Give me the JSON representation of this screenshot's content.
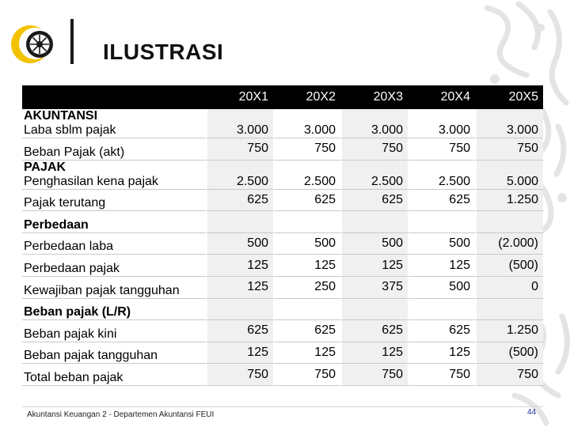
{
  "slide": {
    "title": "ILUSTRASI",
    "footer": "Akuntansi Keuangan 2 - Departemen Akuntansi FEUI",
    "page_number": "44"
  },
  "table": {
    "headers": [
      "",
      "20X1",
      "20X2",
      "20X3",
      "20X4",
      "20X5"
    ],
    "rows": [
      {
        "label_top": "AKUNTANSI",
        "label": "Laba sblm pajak",
        "values": [
          "3.000",
          "3.000",
          "3.000",
          "3.000",
          "3.000"
        ]
      },
      {
        "label": "Beban Pajak (akt)",
        "values": [
          "750",
          "750",
          "750",
          "750",
          "750"
        ]
      },
      {
        "label_top": "PAJAK",
        "label": "Penghasilan kena pajak",
        "values": [
          "2.500",
          "2.500",
          "2.500",
          "2.500",
          "5.000"
        ]
      },
      {
        "label": "Pajak terutang",
        "values": [
          "625",
          "625",
          "625",
          "625",
          "1.250"
        ]
      },
      {
        "label": "Perbedaan",
        "bold": true,
        "values": [
          "",
          "",
          "",
          "",
          ""
        ]
      },
      {
        "label": "Perbedaan laba",
        "values": [
          "500",
          "500",
          "500",
          "500",
          "(2.000)"
        ]
      },
      {
        "label": "Perbedaan pajak",
        "values": [
          "125",
          "125",
          "125",
          "125",
          "(500)"
        ]
      },
      {
        "label": "Kewajiban pajak tangguhan",
        "values": [
          "125",
          "250",
          "375",
          "500",
          "0"
        ]
      },
      {
        "label": "Beban pajak (L/R)",
        "bold": true,
        "values": [
          "",
          "",
          "",
          "",
          ""
        ]
      },
      {
        "label": "Beban pajak kini",
        "values": [
          "625",
          "625",
          "625",
          "625",
          "1.250"
        ]
      },
      {
        "label": "Beban pajak tangguhan",
        "values": [
          "125",
          "125",
          "125",
          "125",
          "(500)"
        ]
      },
      {
        "label": "Total beban pajak",
        "values": [
          "750",
          "750",
          "750",
          "750",
          "750"
        ]
      }
    ]
  },
  "colors": {
    "header_bg": "#000000",
    "brand_gold": "#f2c200",
    "decor_gray": "#e4e4e4"
  }
}
